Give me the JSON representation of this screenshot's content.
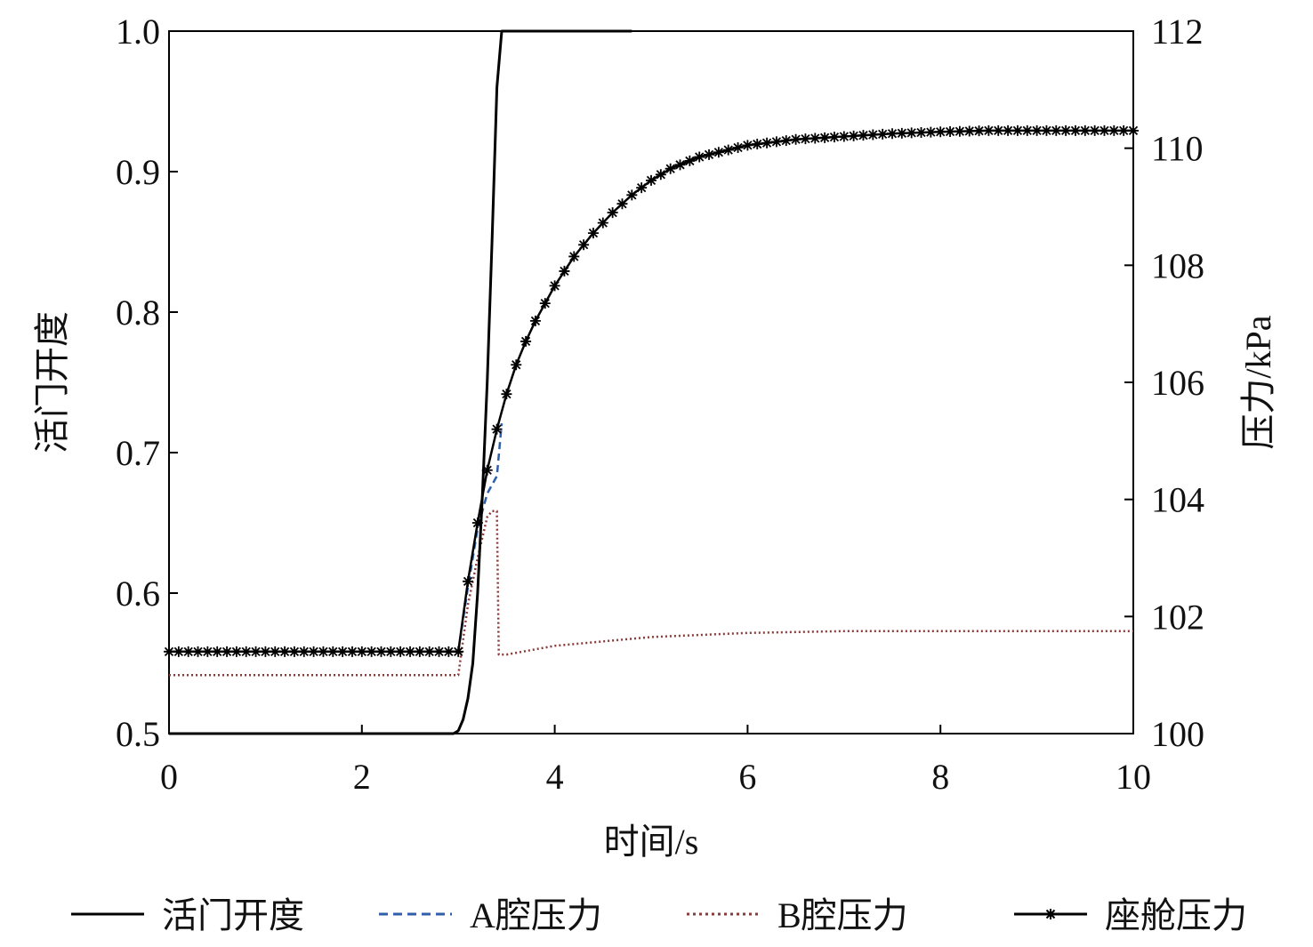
{
  "chart_data": {
    "type": "line",
    "title": "",
    "xlabel": "时间/s",
    "ylabel_left": "活门开度",
    "ylabel_right": "压力/kPa",
    "xlim": [
      0,
      10
    ],
    "ylim_left": [
      0.5,
      1.0
    ],
    "ylim_right": [
      100,
      112
    ],
    "x_ticks": [
      "0",
      "2",
      "4",
      "6",
      "8",
      "10"
    ],
    "y_left_ticks": [
      "0.5",
      "0.6",
      "0.7",
      "0.8",
      "0.9",
      "1.0"
    ],
    "y_right_ticks": [
      "100",
      "102",
      "104",
      "106",
      "108",
      "110",
      "112"
    ],
    "grid": false,
    "legend_position": "bottom",
    "series": [
      {
        "name": "活门开度",
        "axis": "left",
        "style": "solid",
        "color": "#000000",
        "x": [
          0,
          2.95,
          3.0,
          3.05,
          3.1,
          3.15,
          3.2,
          3.25,
          3.3,
          3.35,
          3.4,
          3.45,
          4.8
        ],
        "y": [
          0.5,
          0.5,
          0.502,
          0.51,
          0.525,
          0.55,
          0.6,
          0.67,
          0.75,
          0.85,
          0.96,
          1.0,
          1.0
        ]
      },
      {
        "name": "A腔压力",
        "axis": "right",
        "style": "dashed",
        "color": "#2f5fa8",
        "x": [
          0,
          3.0,
          3.1,
          3.2,
          3.3,
          3.4,
          3.45
        ],
        "y": [
          101.4,
          101.4,
          102.5,
          103.5,
          104.1,
          104.4,
          105.3
        ]
      },
      {
        "name": "B腔压力",
        "axis": "right",
        "style": "dotted",
        "color": "#8b3a3a",
        "x": [
          0,
          3.0,
          3.1,
          3.2,
          3.3,
          3.35,
          3.4,
          3.42,
          3.5,
          4.0,
          5.0,
          6.0,
          7.0,
          8.0,
          9.0,
          10.0
        ],
        "y": [
          101.0,
          101.0,
          102.2,
          103.0,
          103.7,
          103.8,
          103.8,
          101.35,
          101.35,
          101.5,
          101.65,
          101.72,
          101.75,
          101.75,
          101.75,
          101.75
        ]
      },
      {
        "name": "座舱压力",
        "axis": "right",
        "style": "solid-star",
        "color": "#000000",
        "x": [
          0,
          3.0,
          3.1,
          3.2,
          3.3,
          3.4,
          3.5,
          3.6,
          3.7,
          3.8,
          3.9,
          4.0,
          4.2,
          4.4,
          4.6,
          4.8,
          5.0,
          5.2,
          5.5,
          6.0,
          6.5,
          7.0,
          7.5,
          8.0,
          8.5,
          9.0,
          9.5,
          10.0
        ],
        "y": [
          101.4,
          101.4,
          102.6,
          103.6,
          104.5,
          105.2,
          105.8,
          106.3,
          106.7,
          107.05,
          107.35,
          107.65,
          108.15,
          108.55,
          108.9,
          109.2,
          109.45,
          109.65,
          109.85,
          110.05,
          110.15,
          110.2,
          110.25,
          110.28,
          110.3,
          110.3,
          110.3,
          110.3
        ]
      }
    ]
  }
}
